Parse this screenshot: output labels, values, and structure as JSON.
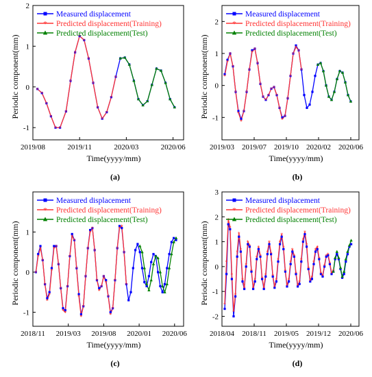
{
  "colors": {
    "measured": "#0000ff",
    "training": "#ff3333",
    "test": "#008000"
  },
  "legend": {
    "measured": "Measured displacement",
    "training": "Predicted displacement(Training)",
    "test": "Predicted displacement(Test)"
  },
  "chart_data": [
    {
      "type": "line",
      "panel_label": "(a)",
      "xlabel": "Time(yyyy/mm)",
      "ylabel": "Periodic component(mm)",
      "xlim": [
        0,
        1
      ],
      "ylim": [
        -1.3,
        2.0
      ],
      "yticks": [
        -1,
        0,
        1,
        2
      ],
      "xtick_labels": [
        "2019/08",
        "2019/11",
        "2020/03",
        "2020/06"
      ],
      "xtick_positions": [
        0.0,
        0.31,
        0.62,
        0.93
      ],
      "legend_position": "top-left",
      "train_end_index": 17,
      "x": [
        0.03,
        0.06,
        0.09,
        0.12,
        0.15,
        0.18,
        0.22,
        0.25,
        0.28,
        0.31,
        0.34,
        0.37,
        0.4,
        0.43,
        0.46,
        0.49,
        0.52,
        0.55,
        0.58,
        0.61,
        0.64,
        0.67,
        0.7,
        0.73,
        0.76,
        0.79,
        0.82,
        0.85,
        0.88,
        0.91,
        0.94
      ],
      "measured": [
        -0.05,
        -0.15,
        -0.4,
        -0.72,
        -1.0,
        -1.0,
        -0.6,
        0.15,
        0.85,
        1.25,
        1.15,
        0.7,
        0.1,
        -0.5,
        -0.78,
        -0.62,
        -0.25,
        0.25,
        0.7,
        0.72,
        0.55,
        0.15,
        -0.3,
        -0.45,
        -0.35,
        0.05,
        0.45,
        0.4,
        0.1,
        -0.3,
        -0.5
      ],
      "training": [
        -0.05,
        -0.15,
        -0.4,
        -0.72,
        -1.0,
        -1.0,
        -0.6,
        0.15,
        0.85,
        1.25,
        1.15,
        0.7,
        0.1,
        -0.5,
        -0.78,
        -0.62,
        -0.25,
        0.25
      ],
      "test": [
        0.7,
        0.72,
        0.55,
        0.15,
        -0.3,
        -0.45,
        -0.35,
        0.05,
        0.45,
        0.4,
        0.1,
        -0.3,
        -0.5
      ]
    },
    {
      "type": "line",
      "panel_label": "(b)",
      "xlabel": "Time(yyyy/mm)",
      "ylabel": "Periodic component(mm)",
      "xlim": [
        0,
        1
      ],
      "ylim": [
        -1.7,
        2.5
      ],
      "yticks": [
        -1,
        0,
        1,
        2
      ],
      "xtick_labels": [
        "2019/03",
        "2019/07",
        "2019/10",
        "2020/02",
        "2020/06"
      ],
      "xtick_positions": [
        0.0,
        0.235,
        0.47,
        0.705,
        0.94
      ],
      "legend_position": "top-right",
      "train_end_index": 28,
      "x": [
        0.02,
        0.04,
        0.06,
        0.08,
        0.1,
        0.12,
        0.14,
        0.16,
        0.18,
        0.2,
        0.22,
        0.24,
        0.26,
        0.28,
        0.3,
        0.32,
        0.34,
        0.36,
        0.38,
        0.4,
        0.42,
        0.44,
        0.46,
        0.48,
        0.5,
        0.52,
        0.54,
        0.56,
        0.58,
        0.6,
        0.62,
        0.64,
        0.66,
        0.68,
        0.7,
        0.72,
        0.74,
        0.76,
        0.78,
        0.8,
        0.82,
        0.84,
        0.86,
        0.88,
        0.9,
        0.92,
        0.94
      ],
      "measured": [
        0.35,
        0.8,
        1.0,
        0.6,
        -0.2,
        -0.8,
        -1.05,
        -0.8,
        -0.2,
        0.5,
        1.1,
        1.15,
        0.7,
        0.05,
        -0.35,
        -0.45,
        -0.3,
        -0.1,
        -0.05,
        -0.3,
        -0.7,
        -1.0,
        -0.95,
        -0.4,
        0.3,
        1.0,
        1.25,
        1.1,
        0.5,
        -0.3,
        -0.7,
        -0.6,
        -0.2,
        0.3,
        0.65,
        0.7,
        0.45,
        0.0,
        -0.35,
        -0.45,
        -0.2,
        0.2,
        0.45,
        0.4,
        0.1,
        -0.3,
        -0.5
      ],
      "training": [
        0.3,
        0.75,
        1.0,
        0.6,
        -0.2,
        -0.85,
        -1.1,
        -0.8,
        -0.2,
        0.5,
        1.05,
        1.15,
        0.7,
        0.05,
        -0.35,
        -0.45,
        -0.3,
        -0.1,
        -0.05,
        -0.3,
        -0.7,
        -1.05,
        -0.95,
        -0.4,
        0.3,
        1.0,
        1.2,
        1.1,
        0.5
      ],
      "test": [
        0.65,
        0.7,
        0.45,
        0.0,
        -0.35,
        -0.45,
        -0.2,
        0.2,
        0.45,
        0.4,
        0.1,
        -0.3,
        -0.5
      ]
    },
    {
      "type": "line",
      "panel_label": "(c)",
      "xlabel": "Time(yyyy/mm)",
      "ylabel": "Periodic component(mm)",
      "xlim": [
        0,
        1
      ],
      "ylim": [
        -1.35,
        2.0
      ],
      "yticks": [
        -1,
        0,
        1
      ],
      "xtick_labels": [
        "2018/11",
        "2019/03",
        "2019/08",
        "2020/01",
        "2020/06"
      ],
      "xtick_positions": [
        0.0,
        0.235,
        0.47,
        0.705,
        0.94
      ],
      "legend_position": "top-right",
      "train_end_index": 40,
      "x": [
        0.02,
        0.035,
        0.05,
        0.065,
        0.08,
        0.095,
        0.11,
        0.125,
        0.14,
        0.155,
        0.17,
        0.185,
        0.2,
        0.215,
        0.23,
        0.245,
        0.26,
        0.275,
        0.29,
        0.305,
        0.32,
        0.335,
        0.35,
        0.365,
        0.38,
        0.395,
        0.41,
        0.425,
        0.44,
        0.455,
        0.47,
        0.485,
        0.5,
        0.515,
        0.53,
        0.545,
        0.56,
        0.575,
        0.59,
        0.605,
        0.62,
        0.635,
        0.65,
        0.665,
        0.68,
        0.695,
        0.71,
        0.725,
        0.74,
        0.755,
        0.77,
        0.785,
        0.8,
        0.815,
        0.83,
        0.845,
        0.86,
        0.875,
        0.89,
        0.905,
        0.92,
        0.935,
        0.95
      ],
      "measured": [
        0.0,
        0.45,
        0.65,
        0.3,
        -0.3,
        -0.65,
        -0.5,
        0.1,
        0.65,
        0.65,
        0.2,
        -0.4,
        -0.9,
        -0.95,
        -0.35,
        0.4,
        0.95,
        0.8,
        0.1,
        -0.55,
        -1.05,
        -0.85,
        -0.1,
        0.6,
        1.05,
        1.1,
        0.55,
        -0.2,
        -0.4,
        -0.35,
        -0.1,
        -0.2,
        -0.6,
        -1.0,
        -0.9,
        -0.2,
        0.6,
        1.15,
        1.1,
        0.5,
        -0.3,
        -0.7,
        -0.5,
        0.1,
        0.55,
        0.7,
        0.5,
        0.1,
        -0.25,
        -0.35,
        -0.1,
        0.25,
        0.45,
        0.4,
        0.0,
        -0.35,
        -0.5,
        -0.3,
        0.1,
        0.45,
        0.75,
        0.85,
        0.8
      ],
      "training": [
        0.0,
        0.4,
        0.6,
        0.3,
        -0.3,
        -0.7,
        -0.55,
        0.05,
        0.6,
        0.65,
        0.2,
        -0.4,
        -0.95,
        -1.0,
        -0.35,
        0.4,
        0.9,
        0.8,
        0.1,
        -0.6,
        -1.1,
        -0.85,
        -0.1,
        0.6,
        1.0,
        1.1,
        0.55,
        -0.2,
        -0.45,
        -0.35,
        -0.1,
        -0.25,
        -0.6,
        -1.05,
        -0.9,
        -0.2,
        0.6,
        1.1,
        1.15,
        0.5,
        -0.3
      ],
      "test": [
        0.65,
        0.5,
        0.1,
        -0.3,
        -0.45,
        -0.2,
        0.2,
        0.4,
        0.35,
        0.0,
        -0.35,
        -0.5,
        -0.3,
        0.1,
        0.45,
        0.75,
        0.85
      ]
    },
    {
      "type": "line",
      "panel_label": "(d)",
      "xlabel": "Time(yyyy/mm)",
      "ylabel": "Periodic component(mm)",
      "xlim": [
        0,
        1
      ],
      "ylim": [
        -2.4,
        3.0
      ],
      "yticks": [
        -2,
        -1,
        0,
        1,
        2,
        3
      ],
      "xtick_labels": [
        "2018/04",
        "2018/11",
        "2019/05",
        "2019/12",
        "2020/06"
      ],
      "xtick_positions": [
        0.0,
        0.235,
        0.47,
        0.705,
        0.94
      ],
      "legend_position": "top-right",
      "train_end_index": 61,
      "x": [
        0.02,
        0.033,
        0.046,
        0.059,
        0.072,
        0.085,
        0.098,
        0.111,
        0.124,
        0.137,
        0.15,
        0.163,
        0.176,
        0.189,
        0.202,
        0.215,
        0.228,
        0.241,
        0.254,
        0.267,
        0.28,
        0.293,
        0.306,
        0.319,
        0.332,
        0.345,
        0.358,
        0.371,
        0.384,
        0.397,
        0.41,
        0.423,
        0.436,
        0.449,
        0.462,
        0.475,
        0.488,
        0.501,
        0.514,
        0.527,
        0.54,
        0.553,
        0.566,
        0.579,
        0.592,
        0.605,
        0.618,
        0.631,
        0.644,
        0.657,
        0.67,
        0.683,
        0.696,
        0.709,
        0.722,
        0.735,
        0.748,
        0.761,
        0.774,
        0.787,
        0.8,
        0.813,
        0.826,
        0.839,
        0.852,
        0.865,
        0.878,
        0.891,
        0.904,
        0.917,
        0.93,
        0.943
      ],
      "measured": [
        -1.7,
        -0.3,
        1.7,
        1.5,
        -0.5,
        -2.0,
        -1.2,
        0.4,
        1.2,
        0.6,
        -0.6,
        -0.9,
        0.0,
        0.9,
        0.8,
        -0.2,
        -0.9,
        -0.6,
        0.3,
        0.7,
        0.4,
        -0.5,
        -0.9,
        -0.4,
        0.5,
        0.9,
        0.5,
        -0.4,
        -0.85,
        -0.6,
        0.2,
        0.9,
        1.2,
        0.7,
        -0.2,
        -0.8,
        -0.6,
        0.1,
        0.6,
        0.4,
        -0.3,
        -0.8,
        -0.7,
        0.2,
        1.0,
        1.3,
        0.8,
        -0.1,
        -0.6,
        -0.5,
        0.1,
        0.6,
        0.7,
        0.3,
        -0.3,
        -0.4,
        0.0,
        0.4,
        0.45,
        0.1,
        -0.3,
        -0.2,
        0.3,
        0.5,
        0.3,
        -0.1,
        -0.45,
        -0.3,
        0.2,
        0.5,
        0.8,
        0.9
      ],
      "training": [
        -1.5,
        0.2,
        1.9,
        1.6,
        -0.3,
        -1.8,
        -1.1,
        0.6,
        1.35,
        0.7,
        -0.5,
        -0.85,
        0.1,
        1.0,
        0.85,
        -0.15,
        -0.85,
        -0.5,
        0.4,
        0.8,
        0.45,
        -0.45,
        -0.85,
        -0.3,
        0.6,
        1.0,
        0.55,
        -0.35,
        -0.8,
        -0.5,
        0.3,
        1.0,
        1.3,
        0.8,
        -0.15,
        -0.75,
        -0.5,
        0.2,
        0.7,
        0.45,
        -0.25,
        -0.75,
        -0.6,
        0.3,
        1.1,
        1.4,
        0.9,
        -0.05,
        -0.55,
        -0.4,
        0.2,
        0.7,
        0.8,
        0.35,
        -0.25,
        -0.35,
        0.05,
        0.45,
        0.5,
        0.15,
        -0.25,
        -0.15
      ],
      "test": [
        -0.2,
        0.35,
        0.6,
        0.35,
        -0.05,
        -0.4,
        -0.2,
        0.3,
        0.6,
        0.85,
        1.05
      ]
    }
  ]
}
